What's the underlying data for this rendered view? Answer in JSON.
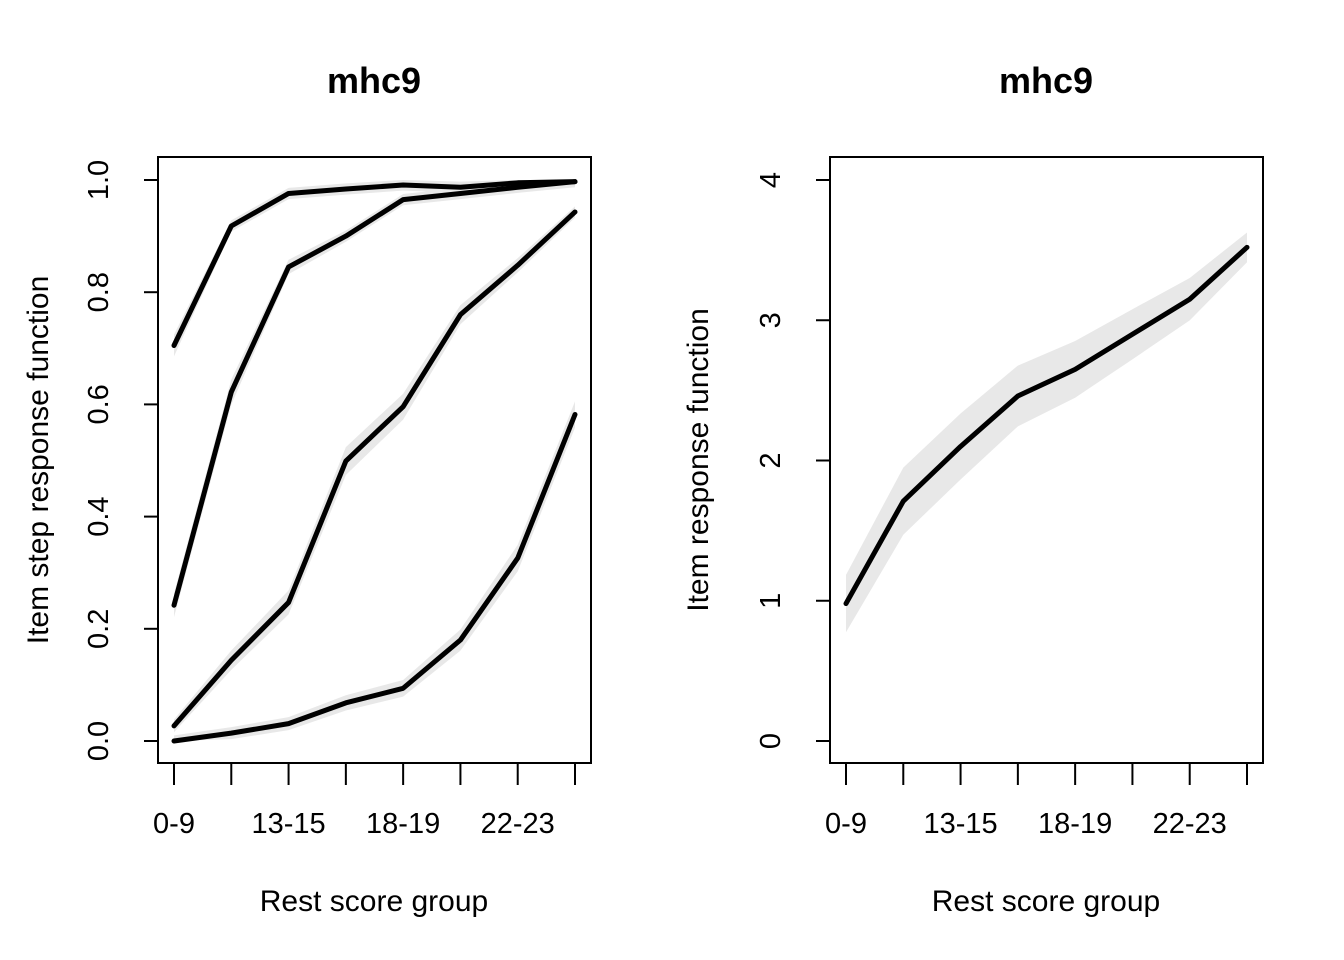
{
  "chart_data": [
    {
      "type": "line",
      "title": "mhc9",
      "xlabel": "Rest score group",
      "ylabel": "Item step response function",
      "x_tick_labels": [
        "0-9",
        "13-15",
        "18-19",
        "22-23"
      ],
      "x_tick_count": 8,
      "y_ticks": [
        "0.0",
        "0.2",
        "0.4",
        "0.6",
        "0.8",
        "1.0"
      ],
      "ylim": [
        0,
        1
      ],
      "series": [
        {
          "values": [
            0.705,
            0.918,
            0.976,
            0.984,
            0.991,
            0.987,
            0.995,
            0.997
          ]
        },
        {
          "values": [
            0.242,
            0.622,
            0.845,
            0.9,
            0.965,
            0.976,
            0.987,
            0.997
          ]
        },
        {
          "values": [
            0.027,
            0.144,
            0.247,
            0.499,
            0.596,
            0.76,
            0.848,
            0.943
          ]
        },
        {
          "values": [
            0.0,
            0.014,
            0.031,
            0.068,
            0.094,
            0.18,
            0.326,
            0.582
          ]
        }
      ],
      "confidence_band_color": "#e8e8e8",
      "line_color": "#000000"
    },
    {
      "type": "line",
      "title": "mhc9",
      "xlabel": "Rest score group",
      "ylabel": "Item response function",
      "x_tick_labels": [
        "0-9",
        "13-15",
        "18-19",
        "22-23"
      ],
      "x_tick_count": 8,
      "y_ticks": [
        "0",
        "1",
        "2",
        "3",
        "4"
      ],
      "ylim": [
        0,
        4
      ],
      "series": [
        {
          "values": [
            0.98,
            1.71,
            2.1,
            2.46,
            2.65,
            2.9,
            3.15,
            3.52
          ]
        }
      ],
      "confidence_band_color": "#e8e8e8",
      "line_color": "#000000"
    }
  ]
}
